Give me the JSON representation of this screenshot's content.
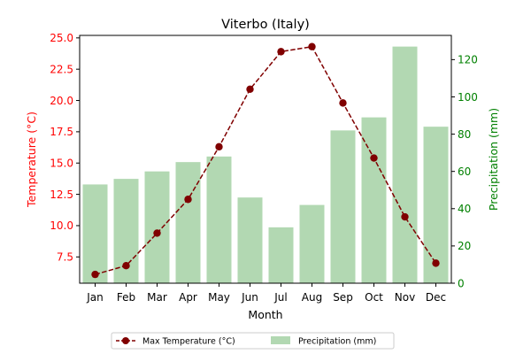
{
  "chart_data": {
    "type": "bar+line",
    "title": "Viterbo (Italy)",
    "xlabel": "Month",
    "categories": [
      "Jan",
      "Feb",
      "Mar",
      "Apr",
      "May",
      "Jun",
      "Jul",
      "Aug",
      "Sep",
      "Oct",
      "Nov",
      "Dec"
    ],
    "series": [
      {
        "name": "Max Temperature (°C)",
        "kind": "line",
        "axis": "left",
        "values": [
          6.1,
          6.8,
          9.4,
          12.1,
          16.3,
          20.9,
          23.9,
          24.3,
          19.8,
          15.4,
          10.7,
          7.0
        ],
        "color": "#800000"
      },
      {
        "name": "Precipitation (mm)",
        "kind": "bar",
        "axis": "right",
        "values": [
          53,
          56,
          60,
          65,
          68,
          46,
          30,
          42,
          82,
          89,
          127,
          84
        ],
        "color": "#b2d8b2"
      }
    ],
    "y_left": {
      "label": "Temperature (°C)",
      "range": [
        5.4,
        25.2
      ],
      "ticks": [
        7.5,
        10.0,
        12.5,
        15.0,
        17.5,
        20.0,
        22.5,
        25.0
      ],
      "tick_labels": [
        "7.5",
        "10.0",
        "12.5",
        "15.0",
        "17.5",
        "20.0",
        "22.5",
        "25.0"
      ],
      "color": "#ff0000"
    },
    "y_right": {
      "label": "Precipitation (mm)",
      "range": [
        0,
        133
      ],
      "ticks": [
        0,
        20,
        40,
        60,
        80,
        100,
        120
      ],
      "tick_labels": [
        "0",
        "20",
        "40",
        "60",
        "80",
        "100",
        "120"
      ],
      "color": "#008000"
    },
    "grid": false,
    "legend": {
      "placement": "bottom-center",
      "entries": [
        "Max Temperature (°C)",
        "Precipitation (mm)"
      ]
    }
  }
}
